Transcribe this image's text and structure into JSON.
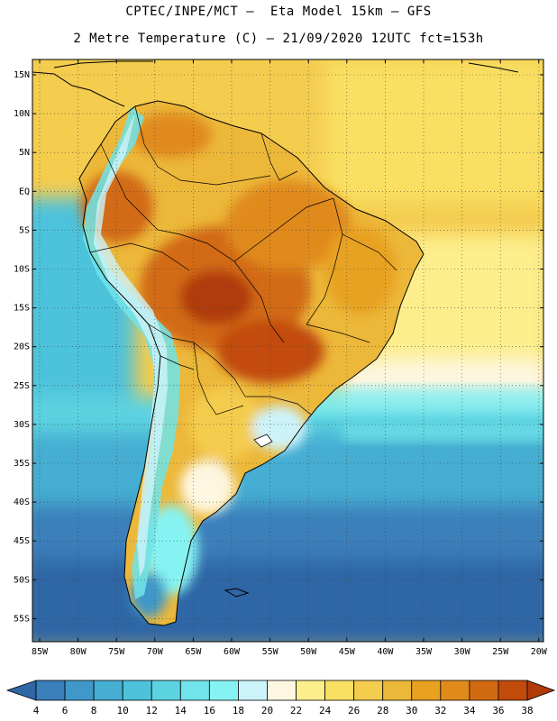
{
  "header": {
    "title_line1": "CPTEC/INPE/MCT –  Eta Model 15km – GFS",
    "title_line2": "2 Metre Temperature (C) – 21/09/2020 12UTC fct=153h"
  },
  "axes": {
    "lat_labels": [
      "15N",
      "10N",
      "5N",
      "EQ",
      "5S",
      "10S",
      "15S",
      "20S",
      "25S",
      "30S",
      "35S",
      "40S",
      "45S",
      "50S",
      "55S"
    ],
    "lon_labels": [
      "85W",
      "80W",
      "75W",
      "70W",
      "65W",
      "60W",
      "55W",
      "50W",
      "45W",
      "40W",
      "35W",
      "30W",
      "25W",
      "20W"
    ]
  },
  "colorbar": {
    "labels": [
      "4",
      "6",
      "8",
      "10",
      "12",
      "14",
      "16",
      "18",
      "20",
      "22",
      "24",
      "26",
      "28",
      "30",
      "32",
      "34",
      "36",
      "38"
    ],
    "colors": [
      "#2f66a6",
      "#3b7fbb",
      "#3f98c8",
      "#45aed2",
      "#4ec2db",
      "#5cd3e1",
      "#6fe4ea",
      "#86f3f3",
      "#cdf3fa",
      "#fdf7e1",
      "#fdee8c",
      "#f9df62",
      "#f4cc4e",
      "#ecb83a",
      "#e8a220",
      "#e08a1a",
      "#d26a12",
      "#c24b0c",
      "#b03a08"
    ]
  }
}
